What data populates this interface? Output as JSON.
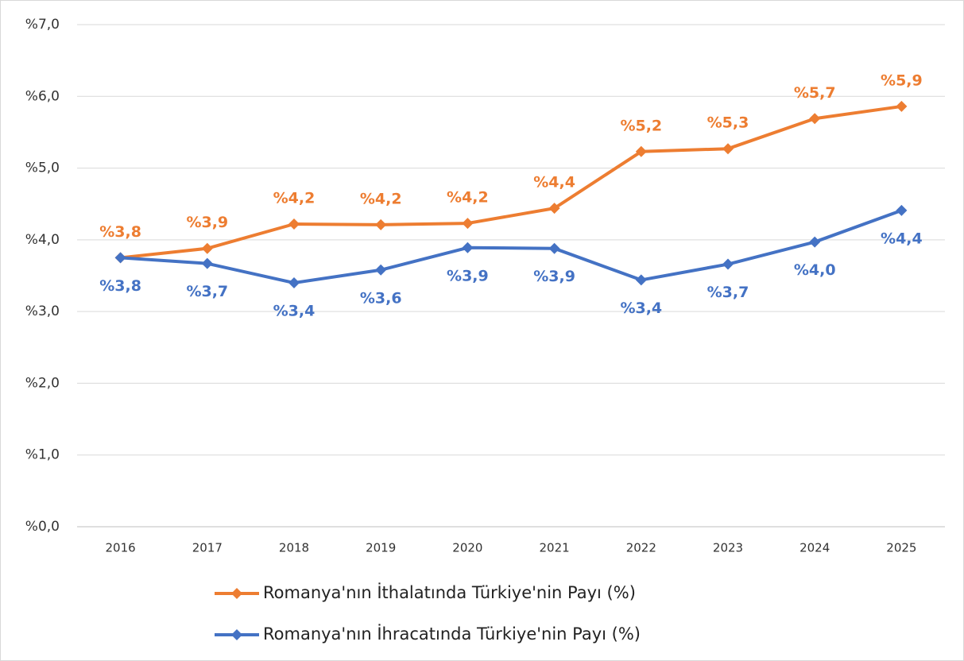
{
  "chart_data": {
    "type": "line",
    "categories": [
      "2016",
      "2017",
      "2018",
      "2019",
      "2020",
      "2021",
      "2022",
      "2023",
      "2024",
      "2025"
    ],
    "series": [
      {
        "name": "Romanya'nın İthalatında Türkiye'nin Payı (%)",
        "color": "#ed7d31",
        "values": [
          3.75,
          3.88,
          4.22,
          4.21,
          4.23,
          4.44,
          5.23,
          5.27,
          5.69,
          5.86
        ],
        "value_labels": [
          "%3,8",
          "%3,9",
          "%4,2",
          "%4,2",
          "%4,2",
          "%4,4",
          "%5,2",
          "%5,3",
          "%5,7",
          "%5,9"
        ]
      },
      {
        "name": "Romanya'nın İhracatında Türkiye'nin Payı (%)",
        "color": "#4472c4",
        "values": [
          3.75,
          3.67,
          3.4,
          3.58,
          3.89,
          3.88,
          3.44,
          3.66,
          3.97,
          4.41
        ],
        "value_labels": [
          "%3,8",
          "%3,7",
          "%3,4",
          "%3,6",
          "%3,9",
          "%3,9",
          "%3,4",
          "%3,7",
          "%4,0",
          "%4,4"
        ]
      }
    ],
    "ylim": [
      0,
      7
    ],
    "yticks": [
      {
        "value": 0,
        "label": "%0,0"
      },
      {
        "value": 1,
        "label": "%1,0"
      },
      {
        "value": 2,
        "label": "%2,0"
      },
      {
        "value": 3,
        "label": "%3,0"
      },
      {
        "value": 4,
        "label": "%4,0"
      },
      {
        "value": 5,
        "label": "%5,0"
      },
      {
        "value": 6,
        "label": "%6,0"
      },
      {
        "value": 7,
        "label": "%7,0"
      }
    ],
    "grid": true
  }
}
